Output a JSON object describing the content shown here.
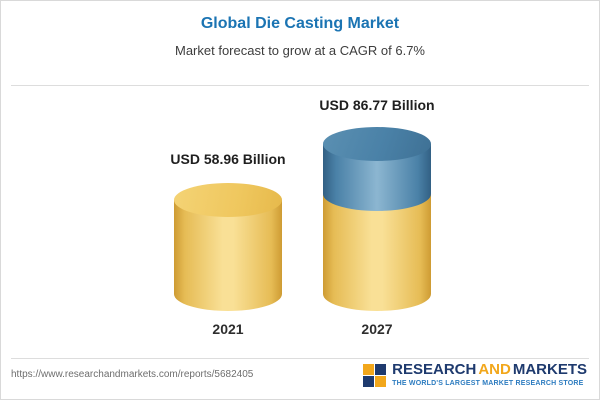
{
  "chart_data": {
    "type": "bar",
    "bar_style": "3d-cylinder",
    "title": "Global Die Casting Market",
    "subtitle": "Market forecast to grow at a CAGR of 6.7%",
    "categories": [
      "2021",
      "2027"
    ],
    "values": [
      58.96,
      86.77
    ],
    "value_labels": [
      "USD 58.96 Billion",
      "USD 86.77 Billion"
    ],
    "unit": "USD Billion",
    "cagr_percent": 6.7,
    "xlabel": "",
    "ylabel": "",
    "legend": "none",
    "grid": "off",
    "colors": {
      "title": "#1B74B3",
      "bar_gold": "#EFC75E",
      "bar_2027_growth_blue": "#4A81A7"
    }
  },
  "footer": {
    "url": "https://www.researchandmarkets.com/reports/5682405",
    "logo": {
      "word_research": "RESEARCH",
      "word_and": "AND",
      "word_markets": "MARKETS",
      "tagline": "THE WORLD'S LARGEST MARKET RESEARCH STORE",
      "navy": "#1E3A6E",
      "gold": "#F2A71B",
      "tagline_blue": "#2D7CC0"
    }
  }
}
